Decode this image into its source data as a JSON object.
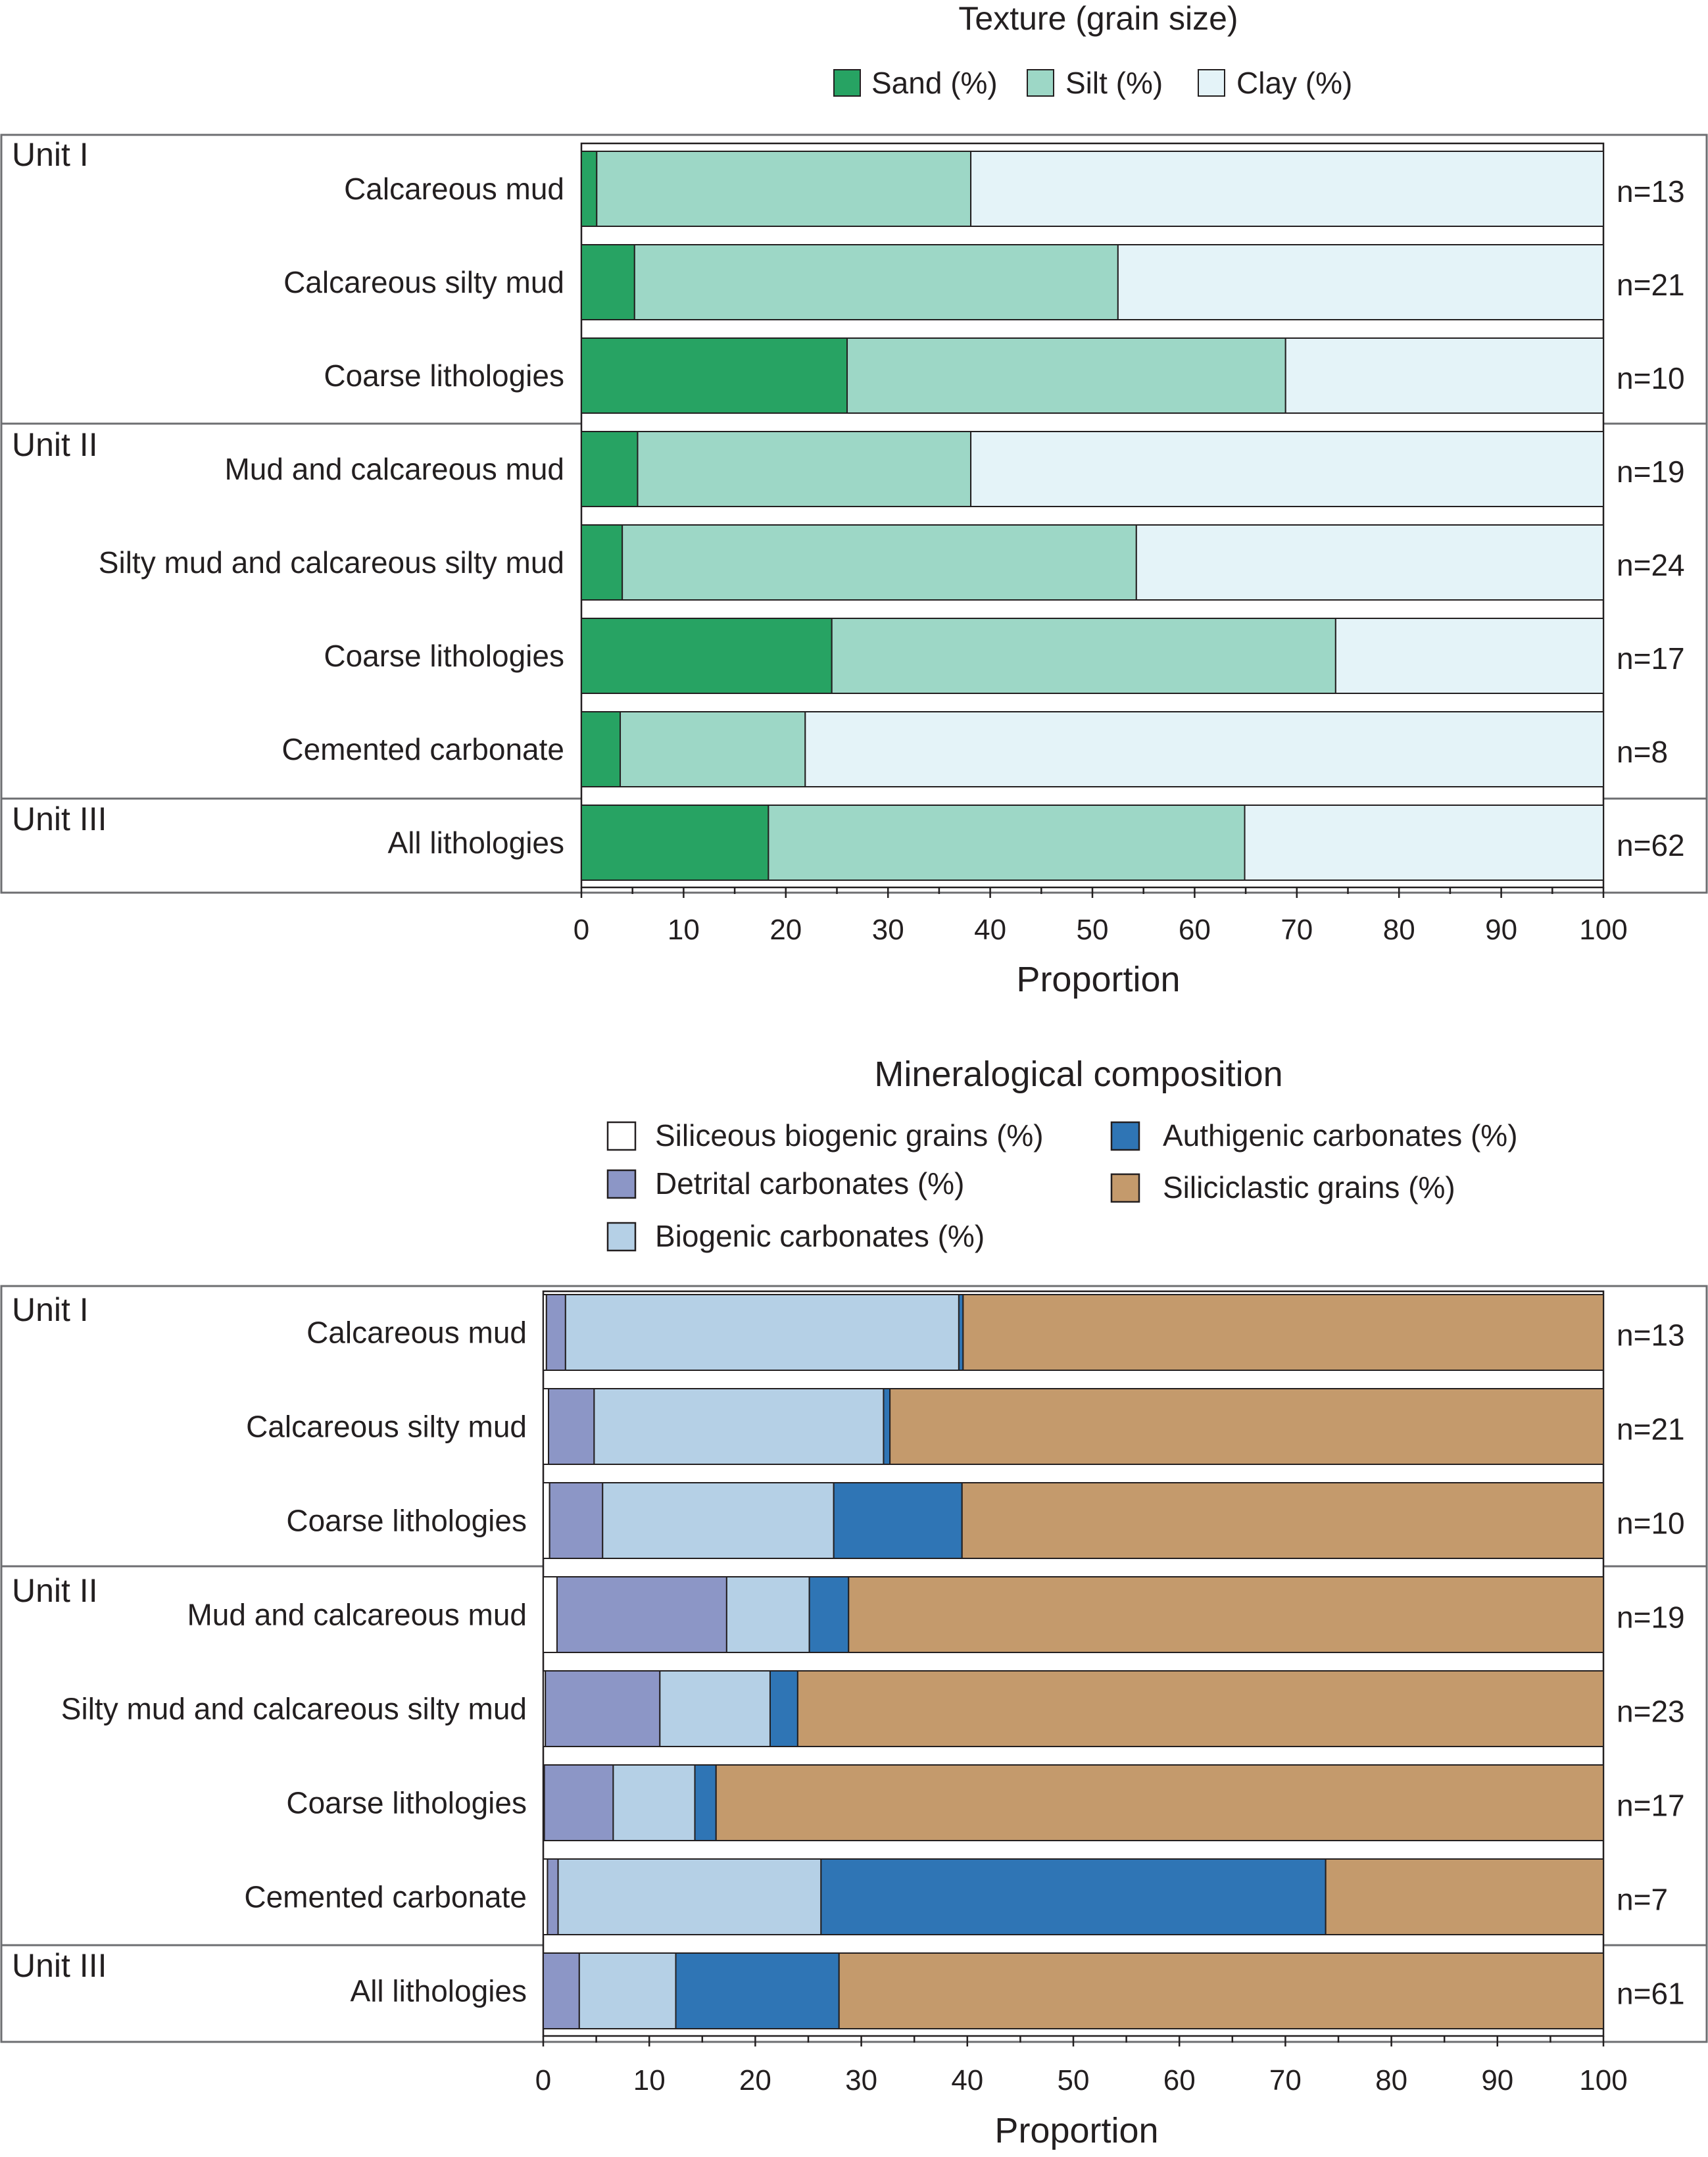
{
  "chart_data": [
    {
      "type": "bar",
      "stacked": true,
      "orientation": "horizontal",
      "title": "Texture (grain size)",
      "xlabel": "Proportion",
      "xlim": [
        0,
        100
      ],
      "xticks": [
        "0",
        "10",
        "20",
        "30",
        "40",
        "50",
        "60",
        "70",
        "80",
        "90",
        "100"
      ],
      "legend_position": "top",
      "legend": [
        "Sand (%)",
        "Silt (%)",
        "Clay (%)"
      ],
      "colors": [
        "#27a363",
        "#9dd7c6",
        "#e4f3f8"
      ],
      "units": [
        {
          "label": "Unit I",
          "rows": 3
        },
        {
          "label": "Unit II",
          "rows": 4
        },
        {
          "label": "Unit III",
          "rows": 1
        }
      ],
      "categories": [
        "Calcareous mud",
        "Calcareous silty mud",
        "Coarse lithologies",
        "Mud and calcareous mud",
        "Silty mud and calcareous silty mud",
        "Coarse lithologies",
        "Cemented carbonate",
        "All lithologies"
      ],
      "counts": [
        "n=13",
        "n=21",
        "n=10",
        "n=19",
        "n=24",
        "n=17",
        "n=8",
        "n=62"
      ],
      "series": [
        {
          "name": "Sand (%)",
          "values": [
            1.5,
            5.2,
            26.0,
            5.5,
            4.0,
            24.5,
            3.8,
            18.3
          ]
        },
        {
          "name": "Silt (%)",
          "values": [
            36.6,
            47.3,
            42.9,
            32.6,
            50.3,
            49.3,
            18.1,
            46.6
          ]
        },
        {
          "name": "Clay (%)",
          "values": [
            61.9,
            47.5,
            31.1,
            61.9,
            45.7,
            26.2,
            78.1,
            35.1
          ]
        }
      ]
    },
    {
      "type": "bar",
      "stacked": true,
      "orientation": "horizontal",
      "title": "Mineralogical composition",
      "xlabel": "Proportion",
      "xlim": [
        0,
        100
      ],
      "xticks": [
        "0",
        "10",
        "20",
        "30",
        "40",
        "50",
        "60",
        "70",
        "80",
        "90",
        "100"
      ],
      "legend_position": "top",
      "legend": [
        "Siliceous biogenic grains (%)",
        "Detrital carbonates (%)",
        "Biogenic carbonates (%)",
        "Authigenic carbonates (%)",
        "Siliciclastic grains (%)"
      ],
      "colors": [
        "#ffffff",
        "#8c96c6",
        "#b5d0e6",
        "#2f75b5",
        "#c49a6c"
      ],
      "units": [
        {
          "label": "Unit I",
          "rows": 3
        },
        {
          "label": "Unit II",
          "rows": 4
        },
        {
          "label": "Unit III",
          "rows": 1
        }
      ],
      "categories": [
        "Calcareous mud",
        "Calcareous silty mud",
        "Coarse lithologies",
        "Mud and calcareous mud",
        "Silty mud and calcareous silty mud",
        "Coarse lithologies",
        "Cemented carbonate",
        "All lithologies"
      ],
      "counts": [
        "n=13",
        "n=21",
        "n=10",
        "n=19",
        "n=23",
        "n=17",
        "n=7",
        "n=61"
      ],
      "series": [
        {
          "name": "Siliceous biogenic grains (%)",
          "values": [
            0.3,
            0.5,
            0.6,
            1.3,
            0.2,
            0.1,
            0.4,
            0.0
          ]
        },
        {
          "name": "Detrital carbonates (%)",
          "values": [
            1.8,
            4.3,
            5.0,
            16.0,
            10.8,
            6.5,
            1.0,
            3.4
          ]
        },
        {
          "name": "Biogenic carbonates (%)",
          "values": [
            37.1,
            27.3,
            21.8,
            7.8,
            10.4,
            7.7,
            24.8,
            9.1
          ]
        },
        {
          "name": "Authigenic carbonates (%)",
          "values": [
            0.4,
            0.6,
            12.1,
            3.7,
            2.6,
            2.0,
            47.6,
            15.4
          ]
        },
        {
          "name": "Siliciclastic grains (%)",
          "values": [
            60.4,
            67.3,
            60.5,
            71.2,
            76.0,
            83.7,
            26.2,
            72.1
          ]
        }
      ]
    }
  ]
}
